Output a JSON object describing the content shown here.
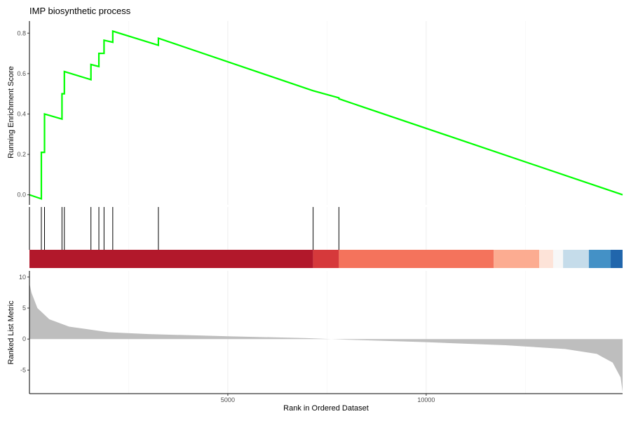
{
  "chart_data": {
    "type": "line",
    "title": "IMP biosynthetic process",
    "xlabel": "Rank in Ordered Dataset",
    "xlim": [
      0,
      14950
    ],
    "x_ticks": [
      5000,
      10000
    ],
    "grid": true,
    "colors": {
      "enrichment_line": "#00ff00",
      "hit_line": "#000000",
      "ranked_fill": "#bebebe",
      "heat_strip": [
        "#b2182b",
        "#d6393b",
        "#f4735c",
        "#fcac91",
        "#fde3d8",
        "#f7f7f7",
        "#c5dcea",
        "#4491c6",
        "#2166ac"
      ]
    },
    "panels": [
      {
        "name": "running_enrichment",
        "ylabel": "Running Enrichment Score",
        "ylim": [
          -0.05,
          0.86
        ],
        "y_ticks": [
          0.0,
          0.2,
          0.4,
          0.6,
          0.8
        ],
        "y_tick_labels": [
          "0.0",
          "0.2",
          "0.4",
          "0.6",
          "0.8"
        ],
        "series": [
          {
            "x": [
              0,
              300,
              300,
              380,
              380,
              820,
              820,
              880,
              880,
              1550,
              1550,
              1750,
              1750,
              1880,
              1880,
              2100,
              2100,
              3250,
              3250,
              7150,
              7800,
              7800,
              14950
            ],
            "y": [
              0.0,
              -0.02,
              0.21,
              0.21,
              0.4,
              0.375,
              0.5,
              0.5,
              0.61,
              0.57,
              0.645,
              0.635,
              0.7,
              0.7,
              0.765,
              0.755,
              0.81,
              0.74,
              0.775,
              0.515,
              0.48,
              0.475,
              0.0
            ]
          }
        ]
      },
      {
        "name": "gene_hits",
        "hits": [
          300,
          380,
          820,
          880,
          1550,
          1750,
          1880,
          2100,
          3250,
          7150,
          7800
        ]
      },
      {
        "name": "ranked_list",
        "ylabel": "Ranked List Metric",
        "ylim": [
          -8.8,
          11
        ],
        "y_ticks": [
          -5,
          0,
          5,
          10
        ],
        "y_tick_labels": [
          "-5",
          "0",
          "5",
          "10"
        ],
        "series": [
          {
            "x": [
              0,
              50,
              200,
              500,
              1000,
              2000,
              3000,
              5000,
              7000,
              8000,
              10000,
              12000,
              13500,
              14300,
              14700,
              14900,
              14950
            ],
            "y": [
              9.0,
              7.5,
              5.0,
              3.2,
              2.0,
              1.1,
              0.8,
              0.45,
              0.15,
              -0.1,
              -0.5,
              -1.0,
              -1.6,
              -2.4,
              -3.8,
              -6.2,
              -8.5
            ]
          }
        ]
      }
    ],
    "x_tick_labels": [
      "5000",
      "10000"
    ]
  }
}
